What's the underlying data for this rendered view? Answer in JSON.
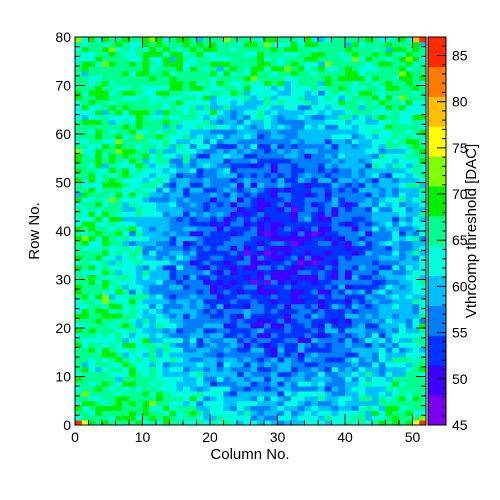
{
  "chart_data": {
    "type": "heatmap",
    "xlabel": "Column No.",
    "ylabel": "Row No.",
    "zlabel": "Vthrcomp threshold [DAC]",
    "xlim": [
      0,
      52
    ],
    "ylim": [
      0,
      80
    ],
    "zlim": [
      45,
      87
    ],
    "n_columns": 52,
    "n_rows": 80,
    "x_ticks": [
      0,
      10,
      20,
      30,
      40,
      50
    ],
    "y_ticks": [
      0,
      10,
      20,
      30,
      40,
      50,
      60,
      70,
      80
    ],
    "z_ticks": [
      45,
      50,
      55,
      60,
      65,
      70,
      75,
      80,
      85
    ],
    "value_model": {
      "description": "approximate per-pixel threshold: low (~50-55) in the central region, rising to ~62-68 at the edges, with per-pixel noise; corner pixels reach ~85",
      "center_col": 30,
      "center_row": 33,
      "center_value": 52,
      "edge_value": 66,
      "noise_amplitude": 6,
      "hot_pixels": [
        {
          "col": 0,
          "row": 0,
          "value": 85
        },
        {
          "col": 51,
          "row": 0,
          "value": 86
        },
        {
          "col": 51,
          "row": 79,
          "value": 85
        },
        {
          "col": 0,
          "row": 79,
          "value": 72
        },
        {
          "col": 50,
          "row": 79,
          "value": 80
        },
        {
          "col": 1,
          "row": 0,
          "value": 75
        },
        {
          "col": 50,
          "row": 0,
          "value": 77
        }
      ]
    },
    "palette": [
      "#7a00f0",
      "#3d00ff",
      "#0033ff",
      "#0080ff",
      "#00bfff",
      "#00ffe0",
      "#00ff90",
      "#00f000",
      "#80ff00",
      "#ffff00",
      "#ffbf00",
      "#ff7a00",
      "#ff2a00"
    ]
  }
}
